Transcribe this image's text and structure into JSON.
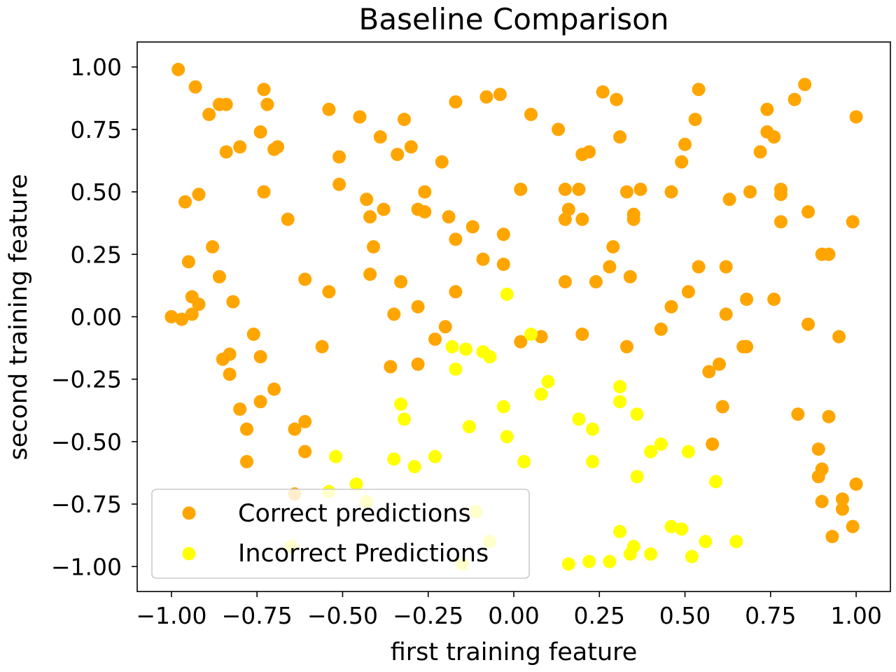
{
  "chart_data": {
    "type": "scatter",
    "title": "Baseline Comparison",
    "xlabel": "first training feature",
    "ylabel": "second training feature",
    "xlim": [
      -1.1,
      1.1
    ],
    "ylim": [
      -1.1,
      1.1
    ],
    "xticks": [
      -1.0,
      -0.75,
      -0.5,
      -0.25,
      0.0,
      0.25,
      0.5,
      0.75,
      1.0
    ],
    "xtick_labels": [
      "−1.00",
      "−0.75",
      "−0.50",
      "−0.25",
      "0.00",
      "0.25",
      "0.50",
      "0.75",
      "1.00"
    ],
    "yticks": [
      -1.0,
      -0.75,
      -0.5,
      -0.25,
      0.0,
      0.25,
      0.5,
      0.75,
      1.0
    ],
    "ytick_labels": [
      "−1.00",
      "−0.75",
      "−0.50",
      "−0.25",
      "0.00",
      "0.25",
      "0.50",
      "0.75",
      "1.00"
    ],
    "grid": false,
    "legend_position": "lower-left",
    "series": [
      {
        "name": "Correct predictions",
        "color": "#FFA500",
        "points": [
          [
            -0.98,
            0.99
          ],
          [
            -0.93,
            0.92
          ],
          [
            -0.89,
            0.81
          ],
          [
            -0.86,
            0.85
          ],
          [
            -0.84,
            0.85
          ],
          [
            -0.84,
            0.66
          ],
          [
            -0.8,
            0.68
          ],
          [
            -0.74,
            0.74
          ],
          [
            -0.73,
            0.91
          ],
          [
            -0.72,
            0.85
          ],
          [
            -0.7,
            0.67
          ],
          [
            -0.69,
            0.68
          ],
          [
            -0.73,
            0.5
          ],
          [
            -0.96,
            0.46
          ],
          [
            -0.92,
            0.49
          ],
          [
            -0.66,
            0.39
          ],
          [
            -0.88,
            0.28
          ],
          [
            -0.95,
            0.22
          ],
          [
            -0.86,
            0.16
          ],
          [
            -0.94,
            0.08
          ],
          [
            -0.92,
            0.05
          ],
          [
            -0.94,
            0.01
          ],
          [
            -0.97,
            -0.01
          ],
          [
            -1.0,
            0.0
          ],
          [
            -0.82,
            0.06
          ],
          [
            -0.76,
            -0.07
          ],
          [
            -0.85,
            -0.17
          ],
          [
            -0.83,
            -0.15
          ],
          [
            -0.83,
            -0.23
          ],
          [
            -0.74,
            -0.16
          ],
          [
            -0.7,
            -0.29
          ],
          [
            -0.74,
            -0.34
          ],
          [
            -0.8,
            -0.37
          ],
          [
            -0.78,
            -0.45
          ],
          [
            -0.78,
            -0.58
          ],
          [
            -0.64,
            -0.45
          ],
          [
            -0.61,
            -0.42
          ],
          [
            -0.61,
            -0.54
          ],
          [
            -0.64,
            -0.71
          ],
          [
            -0.61,
            0.15
          ],
          [
            -0.54,
            0.83
          ],
          [
            -0.45,
            0.8
          ],
          [
            -0.51,
            0.64
          ],
          [
            -0.51,
            0.53
          ],
          [
            -0.39,
            0.72
          ],
          [
            -0.34,
            0.65
          ],
          [
            -0.32,
            0.79
          ],
          [
            -0.3,
            0.68
          ],
          [
            -0.43,
            0.47
          ],
          [
            -0.42,
            0.4
          ],
          [
            -0.38,
            0.43
          ],
          [
            -0.41,
            0.28
          ],
          [
            -0.42,
            0.17
          ],
          [
            -0.54,
            0.1
          ],
          [
            -0.56,
            -0.12
          ],
          [
            -0.33,
            0.14
          ],
          [
            -0.35,
            0.01
          ],
          [
            -0.28,
            0.04
          ],
          [
            -0.36,
            -0.2
          ],
          [
            -0.28,
            -0.19
          ],
          [
            -0.26,
            0.5
          ],
          [
            -0.28,
            0.43
          ],
          [
            -0.26,
            0.42
          ],
          [
            -0.21,
            0.62
          ],
          [
            -0.17,
            0.86
          ],
          [
            -0.08,
            0.88
          ],
          [
            -0.04,
            0.89
          ],
          [
            -0.19,
            0.4
          ],
          [
            -0.17,
            0.31
          ],
          [
            -0.12,
            0.36
          ],
          [
            -0.09,
            0.23
          ],
          [
            -0.03,
            0.33
          ],
          [
            -0.03,
            0.21
          ],
          [
            -0.17,
            0.1
          ],
          [
            -0.2,
            -0.04
          ],
          [
            -0.23,
            -0.09
          ],
          [
            0.05,
            0.81
          ],
          [
            0.13,
            0.75
          ],
          [
            0.02,
            0.51
          ],
          [
            0.15,
            0.51
          ],
          [
            0.19,
            0.51
          ],
          [
            0.16,
            0.43
          ],
          [
            0.15,
            0.39
          ],
          [
            0.2,
            0.39
          ],
          [
            0.2,
            0.65
          ],
          [
            0.22,
            0.66
          ],
          [
            0.26,
            0.9
          ],
          [
            0.3,
            0.87
          ],
          [
            0.31,
            0.72
          ],
          [
            0.33,
            0.5
          ],
          [
            0.37,
            0.51
          ],
          [
            0.35,
            0.41
          ],
          [
            0.35,
            0.39
          ],
          [
            0.29,
            0.28
          ],
          [
            0.28,
            0.2
          ],
          [
            0.24,
            0.14
          ],
          [
            0.34,
            0.16
          ],
          [
            0.15,
            0.14
          ],
          [
            0.02,
            -0.1
          ],
          [
            0.08,
            -0.08
          ],
          [
            0.2,
            -0.07
          ],
          [
            0.33,
            -0.12
          ],
          [
            0.54,
            0.91
          ],
          [
            0.53,
            0.79
          ],
          [
            0.5,
            0.69
          ],
          [
            0.49,
            0.62
          ],
          [
            0.46,
            0.5
          ],
          [
            0.54,
            0.2
          ],
          [
            0.51,
            0.1
          ],
          [
            0.46,
            0.04
          ],
          [
            0.43,
            -0.05
          ],
          [
            0.63,
            0.47
          ],
          [
            0.62,
            0.2
          ],
          [
            0.62,
            0.01
          ],
          [
            0.57,
            -0.22
          ],
          [
            0.6,
            -0.19
          ],
          [
            0.61,
            -0.36
          ],
          [
            0.58,
            -0.51
          ],
          [
            0.69,
            0.5
          ],
          [
            0.68,
            0.07
          ],
          [
            0.67,
            -0.12
          ],
          [
            0.68,
            -0.12
          ],
          [
            0.72,
            0.66
          ],
          [
            0.74,
            0.74
          ],
          [
            0.76,
            0.72
          ],
          [
            0.74,
            0.83
          ],
          [
            0.78,
            0.51
          ],
          [
            0.78,
            0.49
          ],
          [
            0.78,
            0.38
          ],
          [
            0.76,
            0.07
          ],
          [
            0.82,
            0.87
          ],
          [
            0.85,
            0.93
          ],
          [
            0.86,
            0.42
          ],
          [
            0.9,
            0.25
          ],
          [
            0.92,
            0.25
          ],
          [
            0.86,
            -0.03
          ],
          [
            0.99,
            0.38
          ],
          [
            1.0,
            0.8
          ],
          [
            0.95,
            -0.08
          ],
          [
            0.83,
            -0.39
          ],
          [
            0.92,
            -0.4
          ],
          [
            0.89,
            -0.53
          ],
          [
            0.9,
            -0.61
          ],
          [
            0.89,
            -0.64
          ],
          [
            0.9,
            -0.74
          ],
          [
            0.96,
            -0.73
          ],
          [
            0.96,
            -0.77
          ],
          [
            1.0,
            -0.67
          ],
          [
            0.99,
            -0.84
          ],
          [
            0.93,
            -0.88
          ]
        ]
      },
      {
        "name": "Incorrect Predictions",
        "color": "#FFFF00",
        "points": [
          [
            -0.02,
            0.09
          ],
          [
            -0.18,
            -0.12
          ],
          [
            -0.14,
            -0.13
          ],
          [
            -0.17,
            -0.21
          ],
          [
            -0.09,
            -0.14
          ],
          [
            -0.07,
            -0.16
          ],
          [
            0.05,
            -0.07
          ],
          [
            -0.33,
            -0.35
          ],
          [
            -0.32,
            -0.41
          ],
          [
            -0.35,
            -0.57
          ],
          [
            -0.29,
            -0.6
          ],
          [
            -0.23,
            -0.56
          ],
          [
            -0.52,
            -0.56
          ],
          [
            -0.54,
            -0.7
          ],
          [
            -0.46,
            -0.67
          ],
          [
            -0.43,
            -0.74
          ],
          [
            -0.65,
            -0.92
          ],
          [
            -0.15,
            -0.99
          ],
          [
            -0.11,
            -0.78
          ],
          [
            -0.07,
            -0.9
          ],
          [
            -0.13,
            -0.44
          ],
          [
            -0.03,
            -0.36
          ],
          [
            -0.02,
            -0.48
          ],
          [
            0.03,
            -0.58
          ],
          [
            0.08,
            -0.31
          ],
          [
            0.1,
            -0.26
          ],
          [
            0.19,
            -0.41
          ],
          [
            0.23,
            -0.45
          ],
          [
            0.23,
            -0.58
          ],
          [
            0.16,
            -0.99
          ],
          [
            0.22,
            -0.98
          ],
          [
            0.28,
            -0.98
          ],
          [
            0.31,
            -0.28
          ],
          [
            0.31,
            -0.34
          ],
          [
            0.36,
            -0.39
          ],
          [
            0.36,
            -0.64
          ],
          [
            0.31,
            -0.86
          ],
          [
            0.34,
            -0.95
          ],
          [
            0.35,
            -0.92
          ],
          [
            0.4,
            -0.95
          ],
          [
            0.4,
            -0.54
          ],
          [
            0.43,
            -0.51
          ],
          [
            0.46,
            -0.84
          ],
          [
            0.49,
            -0.85
          ],
          [
            0.51,
            -0.54
          ],
          [
            0.52,
            -0.96
          ],
          [
            0.56,
            -0.9
          ],
          [
            0.59,
            -0.66
          ],
          [
            0.65,
            -0.9
          ]
        ]
      }
    ]
  }
}
